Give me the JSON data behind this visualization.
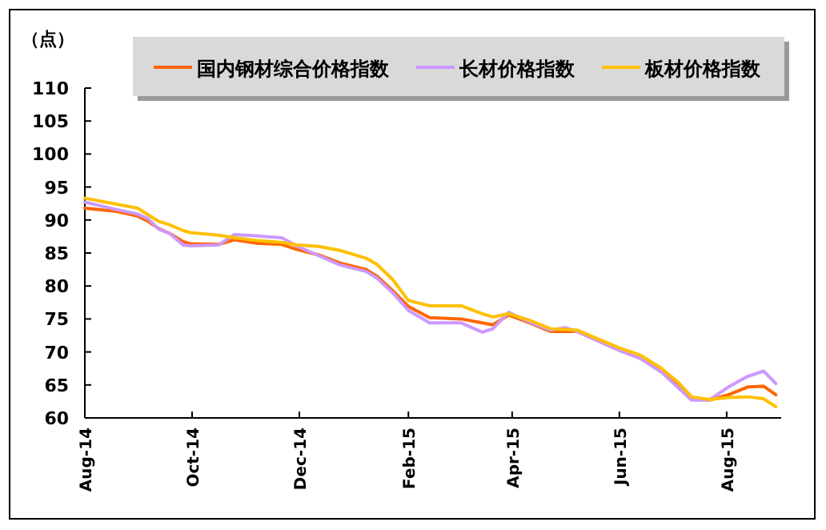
{
  "chart_data": {
    "type": "line",
    "ylabel": "（点）",
    "legend": "top",
    "x": [
      "2014-08-01",
      "2014-08-19",
      "2014-08-31",
      "2014-09-06",
      "2014-09-12",
      "2014-09-18",
      "2014-09-26",
      "2014-09-30",
      "2014-10-16",
      "2014-10-25",
      "2014-11-06",
      "2014-11-21",
      "2014-11-30",
      "2014-12-12",
      "2014-12-24",
      "2015-01-08",
      "2015-01-14",
      "2015-01-23",
      "2015-02-01",
      "2015-02-13",
      "2015-03-03",
      "2015-03-15",
      "2015-03-21",
      "2015-03-30",
      "2015-04-11",
      "2015-04-23",
      "2015-05-01",
      "2015-05-08",
      "2015-06-01",
      "2015-06-13",
      "2015-06-25",
      "2015-07-04",
      "2015-07-12",
      "2015-07-22",
      "2015-08-02",
      "2015-08-13",
      "2015-08-22",
      "2015-08-29"
    ],
    "series": [
      {
        "name": "国内钢材综合价格指数",
        "color": "#ff6600",
        "values": [
          91.8,
          91.3,
          90.6,
          89.8,
          88.7,
          88.0,
          86.7,
          86.4,
          86.3,
          87.0,
          86.5,
          86.3,
          85.5,
          84.7,
          83.5,
          82.5,
          81.5,
          79.3,
          76.9,
          75.2,
          75.0,
          74.4,
          74.1,
          75.6,
          74.4,
          73.1,
          73.1,
          73.1,
          70.3,
          69.3,
          67.3,
          65.2,
          63.1,
          62.7,
          63.5,
          64.7,
          64.8,
          63.5
        ]
      },
      {
        "name": "长材价格指数",
        "color": "#cc99ff",
        "values": [
          92.7,
          91.6,
          90.9,
          90.2,
          88.6,
          88.0,
          86.2,
          86.1,
          86.2,
          87.8,
          87.6,
          87.3,
          86.0,
          84.6,
          83.2,
          82.2,
          81.2,
          79.0,
          76.3,
          74.4,
          74.4,
          73.0,
          73.5,
          76.0,
          74.5,
          73.3,
          73.7,
          73.1,
          70.2,
          69.0,
          66.9,
          64.7,
          62.7,
          62.7,
          64.7,
          66.3,
          67.1,
          65.2
        ]
      },
      {
        "name": "板材价格指数",
        "color": "#ffc000",
        "values": [
          93.3,
          92.4,
          91.8,
          90.8,
          89.8,
          89.3,
          88.4,
          88.1,
          87.7,
          87.3,
          86.9,
          86.6,
          86.2,
          86.0,
          85.4,
          84.2,
          83.3,
          81.0,
          77.8,
          77.0,
          77.0,
          75.8,
          75.3,
          75.8,
          74.8,
          73.5,
          73.4,
          73.3,
          70.6,
          69.5,
          67.5,
          65.5,
          63.2,
          62.8,
          63.1,
          63.2,
          62.9,
          61.7
        ]
      }
    ],
    "xlim": [
      "2014-08-01",
      "2015-09-01"
    ],
    "xticks": [
      {
        "value": "2014-08-01",
        "label": "Aug-14"
      },
      {
        "value": "2014-10-01",
        "label": "Oct-14"
      },
      {
        "value": "2014-12-01",
        "label": "Dec-14"
      },
      {
        "value": "2015-02-01",
        "label": "Feb-15"
      },
      {
        "value": "2015-04-01",
        "label": "Apr-15"
      },
      {
        "value": "2015-06-01",
        "label": "Jun-15"
      },
      {
        "value": "2015-08-01",
        "label": "Aug-15"
      }
    ],
    "ylim": [
      60,
      110
    ],
    "yticks": [
      60,
      65,
      70,
      75,
      80,
      85,
      90,
      95,
      100,
      105,
      110
    ]
  }
}
